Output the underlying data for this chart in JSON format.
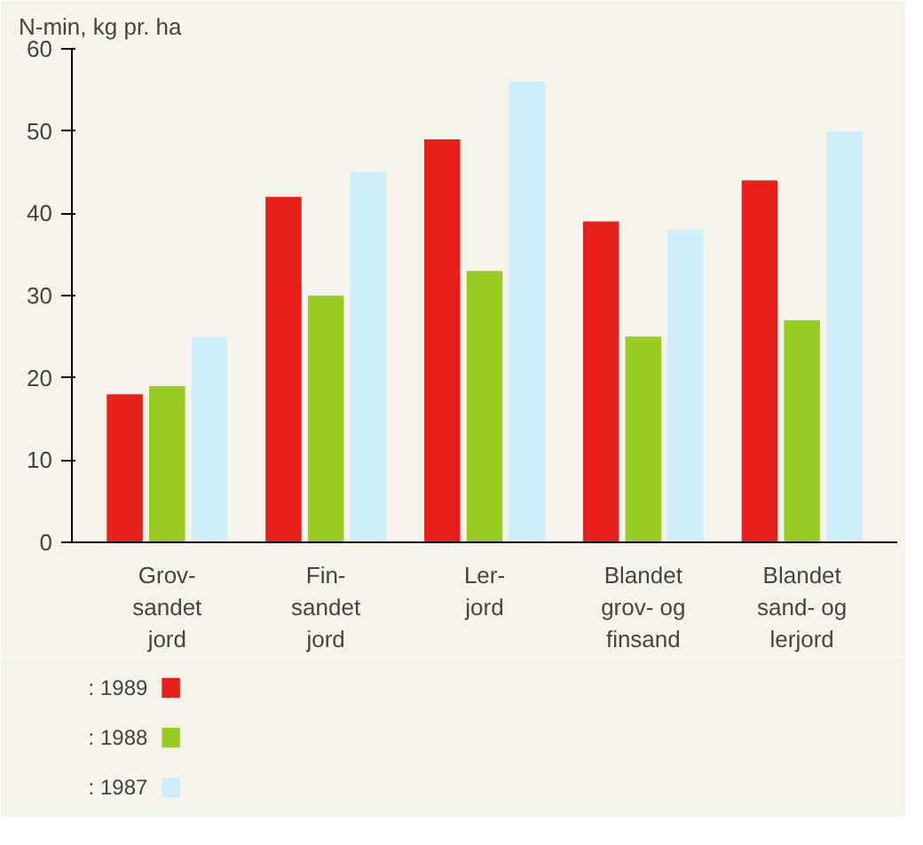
{
  "chart_data": {
    "type": "bar",
    "ylabel": "N-min, kg pr. ha",
    "categories": [
      "Grov-\nsandet\njord",
      "Fin-\nsandet\njord",
      "Ler-\njord",
      "Blandet\ngrov- og\nfinsand",
      "Blandet\nsand- og\nlerjord"
    ],
    "series": [
      {
        "name": ": 1989",
        "color": "#e8201c",
        "values": [
          18,
          42,
          49,
          39,
          44
        ]
      },
      {
        "name": ": 1988",
        "color": "#99cc22",
        "values": [
          19,
          30,
          33,
          25,
          27
        ]
      },
      {
        "name": ": 1987",
        "color": "#cdeefa",
        "values": [
          25,
          45,
          56,
          38,
          50
        ]
      }
    ],
    "ylim": [
      0,
      60
    ],
    "yticks": [
      0,
      10,
      20,
      30,
      40,
      50,
      60
    ],
    "grid": false,
    "legend": "bottom left"
  }
}
